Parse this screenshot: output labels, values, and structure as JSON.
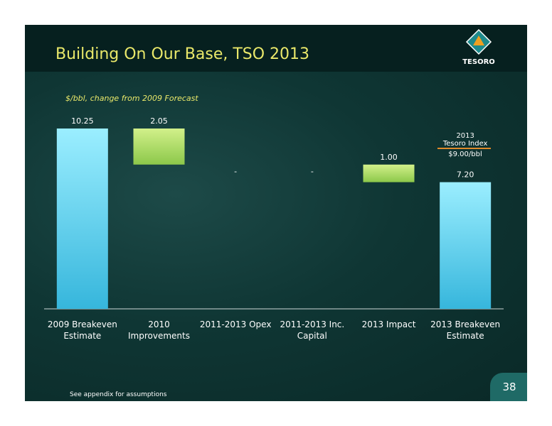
{
  "header": {
    "title": "Building On Our Base, TSO 2013",
    "logo": "TESORO"
  },
  "chart_data": {
    "type": "waterfall",
    "subtitle": "$/bbl, change from 2009 Forecast",
    "categories": [
      "2009 Breakeven Estimate",
      "2010 Improvements",
      "2011-2013 Opex",
      "2011-2013 Inc. Capital",
      "2013 Impact",
      "2013 Breakeven Estimate"
    ],
    "values": [
      10.25,
      -2.05,
      0,
      0,
      -1.0,
      7.2
    ],
    "value_labels": [
      "10.25",
      "2.05",
      "-",
      "-",
      "1.00",
      "7.20"
    ],
    "total_color": "#7fdcf5",
    "change_color": "#a9d96a",
    "annotation": {
      "lines": [
        "2013",
        "Tesoro Index"
      ],
      "value": "$9.00/bbl"
    }
  },
  "footer": {
    "note": "See appendix for assumptions",
    "page": "38"
  }
}
